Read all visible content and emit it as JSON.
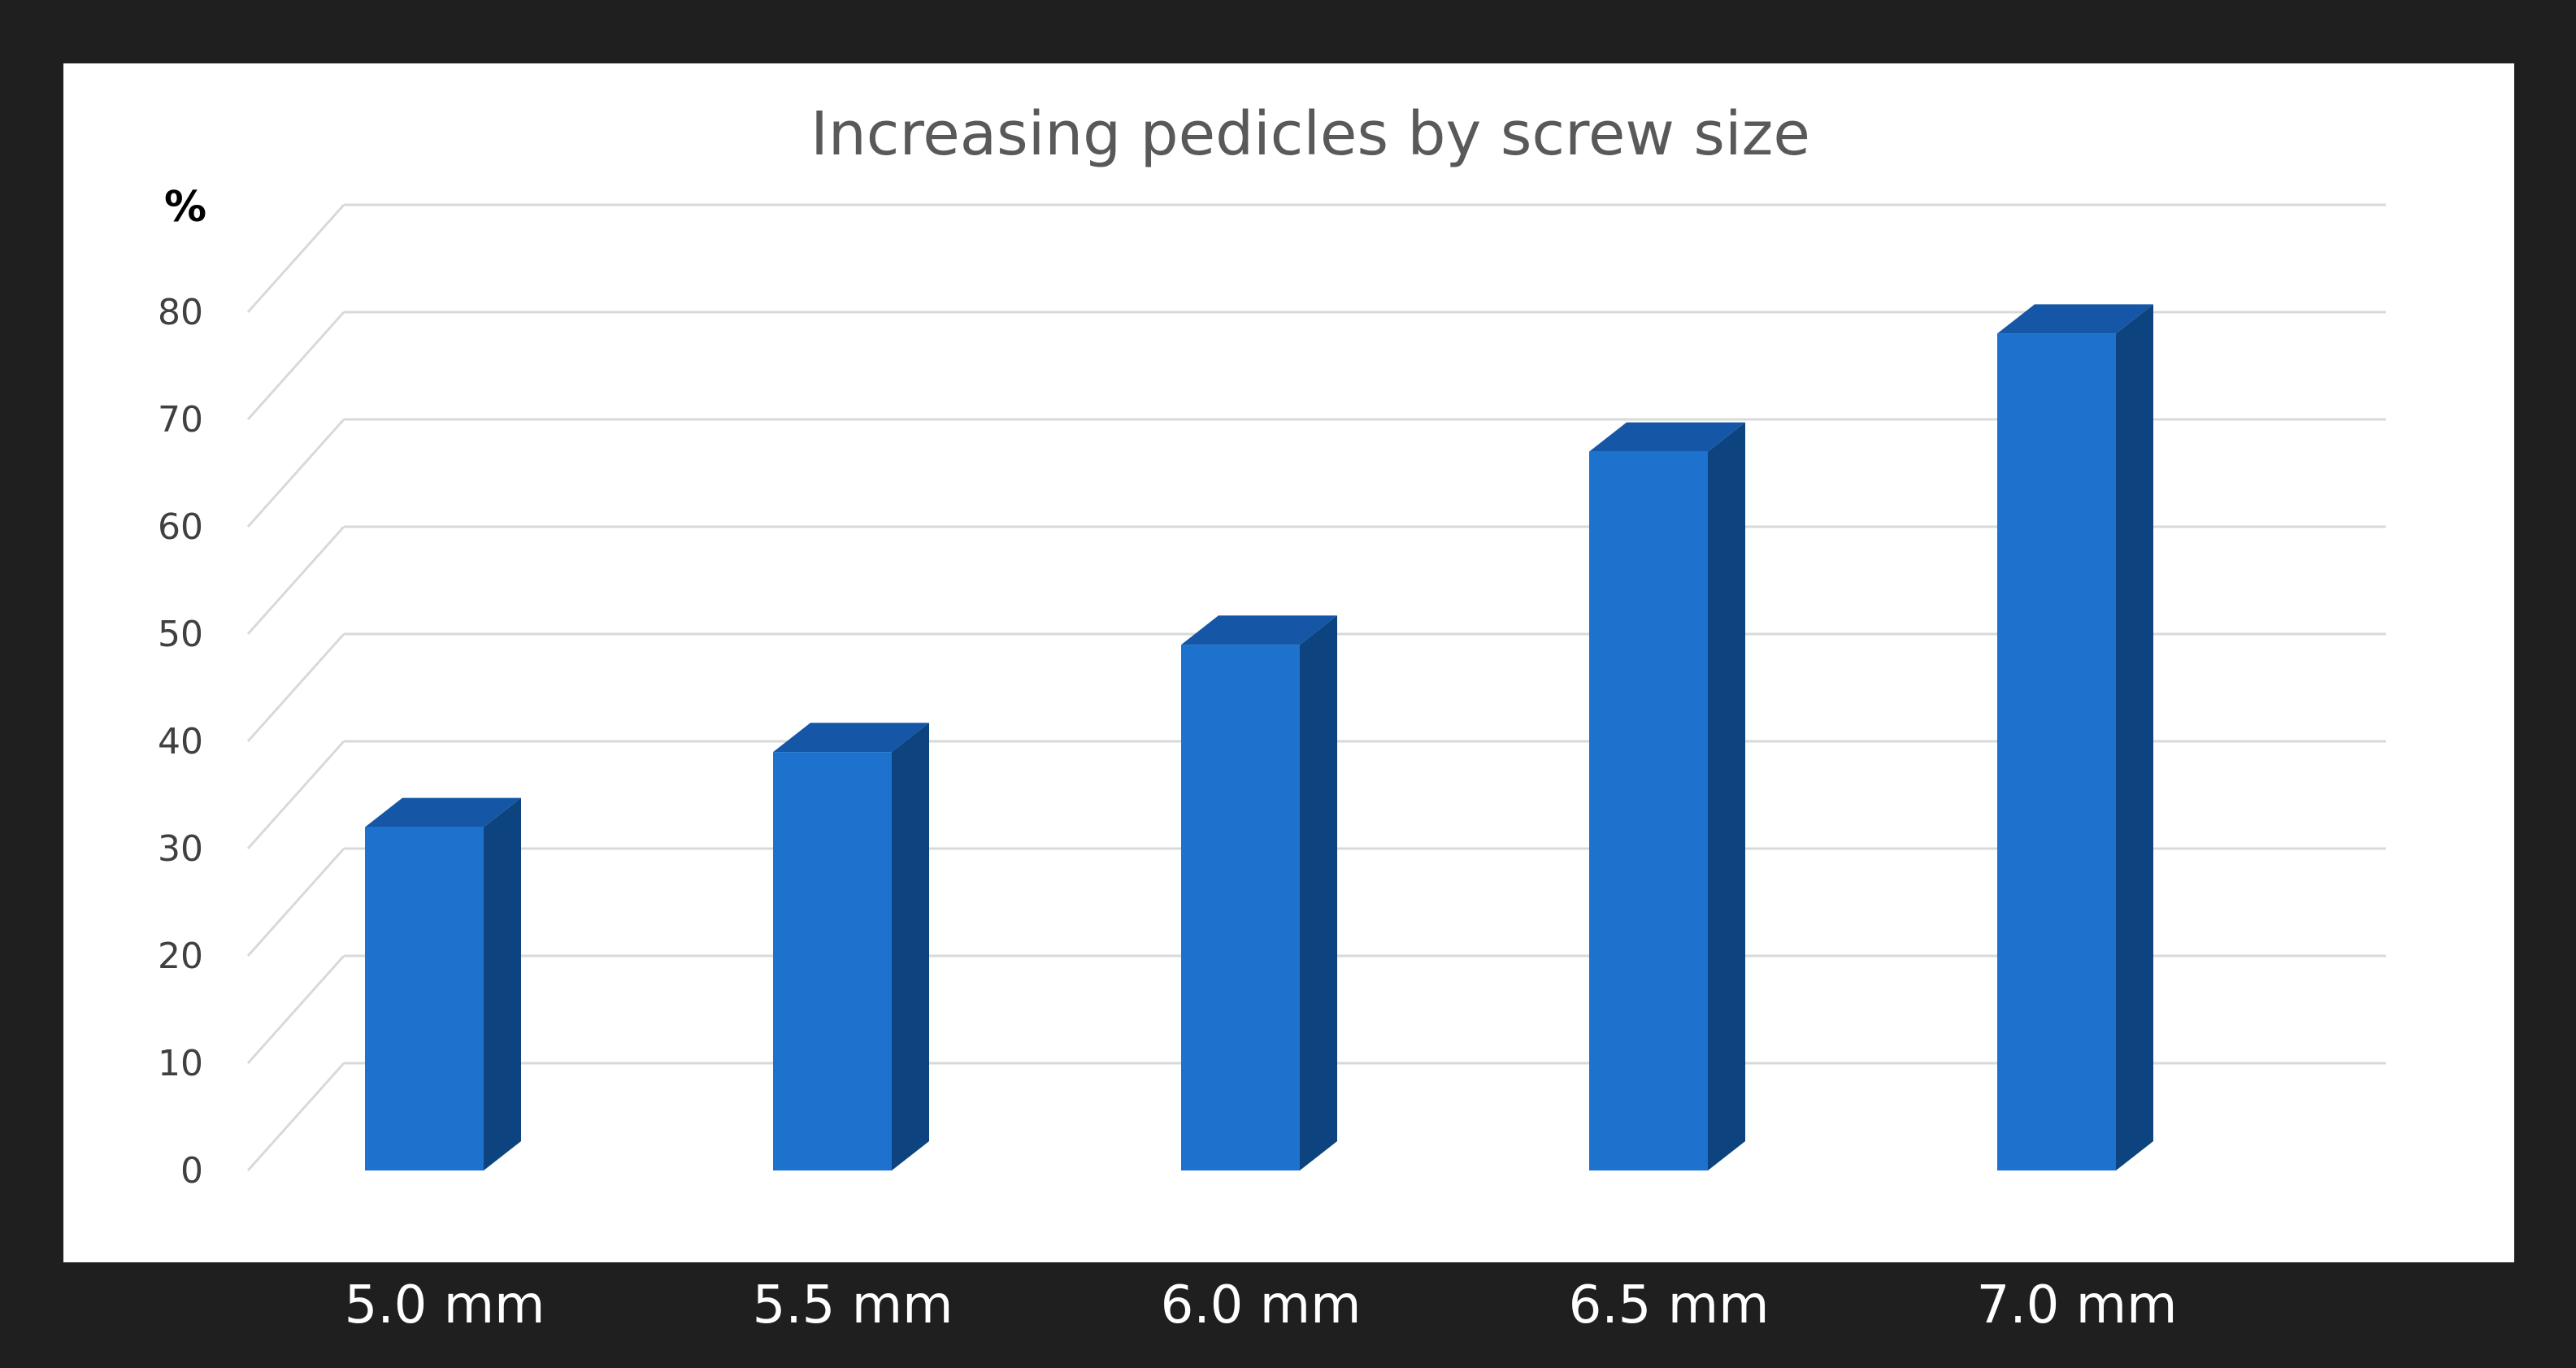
{
  "chart_data": {
    "type": "bar",
    "title": "Increasing pedicles by screw size",
    "ylabel": "%",
    "xlabel": "",
    "categories": [
      "5.0 mm",
      "5.5 mm",
      "6.0 mm",
      "6.5 mm",
      "7.0 mm"
    ],
    "values": [
      32,
      39,
      49,
      67,
      78
    ],
    "ylim": [
      0,
      80
    ],
    "yticks": [
      0,
      10,
      20,
      30,
      40,
      50,
      60,
      70,
      80
    ],
    "grid": true,
    "style": "3d-bar"
  },
  "colors": {
    "frame": "#1f1f1f",
    "plot_background": "#ffffff",
    "gridline": "#d9d9d9",
    "bar_front": "#1c72cc",
    "bar_top": "#1557a6",
    "bar_side": "#0d447f",
    "title": "#595959",
    "ytick": "#404040",
    "xtick": "#ffffff"
  }
}
